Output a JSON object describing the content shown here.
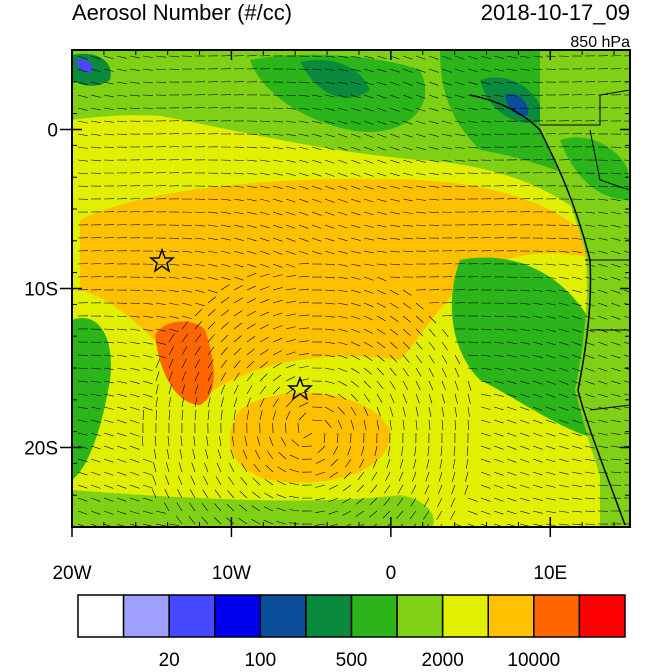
{
  "header": {
    "title": "Aerosol Number (#/cc)",
    "time": "2018-10-17_09",
    "level": "850 hPa"
  },
  "map": {
    "lon_lim": [
      -20,
      15
    ],
    "lat_lim": [
      -25,
      5
    ],
    "lat_ticks": [
      {
        "value": 0,
        "label": "0"
      },
      {
        "value": -10,
        "label": "10S"
      },
      {
        "value": -20,
        "label": "20S"
      }
    ],
    "lon_ticks": [
      {
        "value": -20,
        "label": "20W"
      },
      {
        "value": -10,
        "label": "10W"
      },
      {
        "value": 0,
        "label": "0"
      },
      {
        "value": 10,
        "label": "10E"
      }
    ]
  },
  "colorbar": {
    "colors": [
      "#ffffff",
      "#a0a0ff",
      "#4848ff",
      "#0000f0",
      "#0b4f9c",
      "#0a8a3c",
      "#2cb51a",
      "#80d015",
      "#e0f000",
      "#ffc000",
      "#ff6600",
      "#ff0000"
    ],
    "labels": [
      {
        "value": 20,
        "label": "20"
      },
      {
        "value": 100,
        "label": "100"
      },
      {
        "value": 500,
        "label": "500"
      },
      {
        "value": 2000,
        "label": "2000"
      },
      {
        "value": 10000,
        "label": "10000"
      }
    ]
  }
}
